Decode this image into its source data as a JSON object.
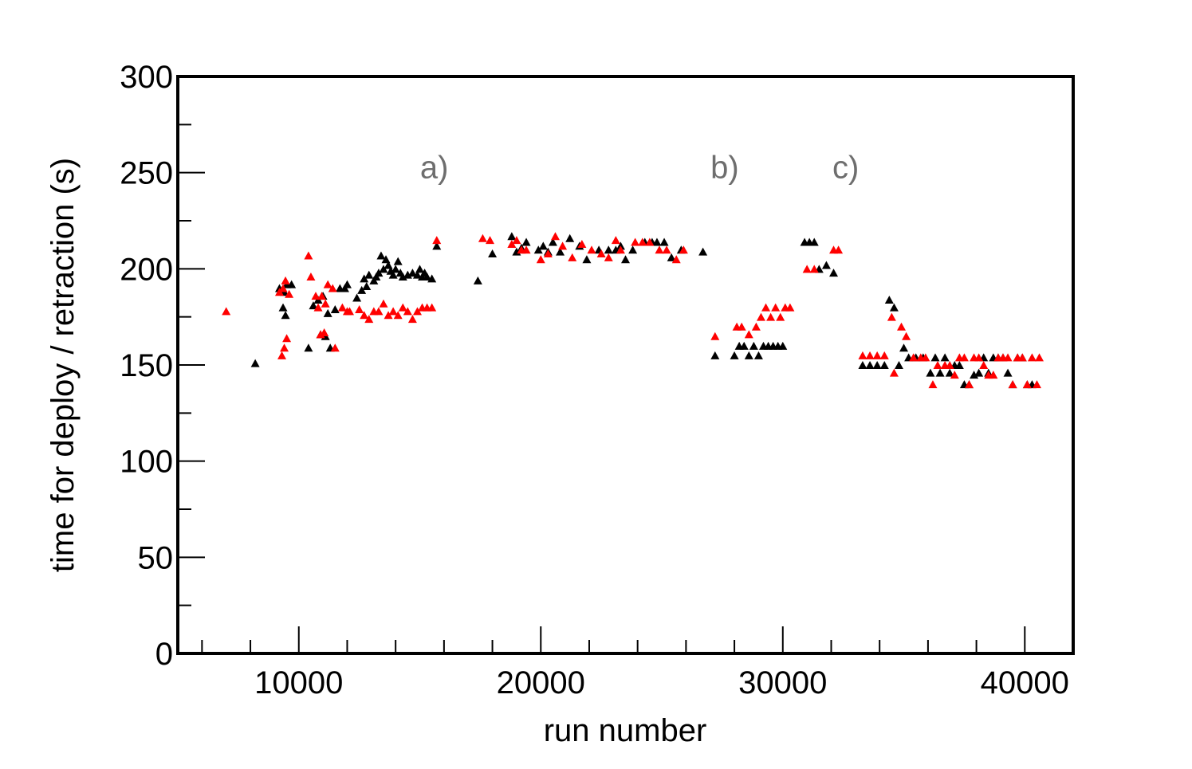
{
  "chart_data": {
    "type": "scatter",
    "title": "",
    "xlabel": "run number",
    "ylabel": "time for deploy / retraction (s)",
    "xlim": [
      5000,
      42000
    ],
    "ylim": [
      0,
      300
    ],
    "xticks": [
      10000,
      20000,
      30000,
      40000
    ],
    "xtick_labels": [
      "10000",
      "20000",
      "30000",
      "40000"
    ],
    "yticks": [
      0,
      50,
      100,
      150,
      200,
      250,
      300
    ],
    "ytick_labels": [
      "0",
      "50",
      "100",
      "150",
      "200",
      "250",
      "300"
    ],
    "grid": false,
    "marker": "triangle",
    "annotations": [
      {
        "text": "a)",
        "x": 15600,
        "y": 253
      },
      {
        "text": "b)",
        "x": 27600,
        "y": 253
      },
      {
        "text": "c)",
        "x": 32600,
        "y": 253
      }
    ],
    "series": [
      {
        "color": "#000000",
        "points": [
          [
            8200,
            151
          ],
          [
            9200,
            190
          ],
          [
            9400,
            188
          ],
          [
            9500,
            192
          ],
          [
            9700,
            192
          ],
          [
            9350,
            180
          ],
          [
            9450,
            176
          ],
          [
            10400,
            159
          ],
          [
            10600,
            181
          ],
          [
            10800,
            184
          ],
          [
            11000,
            186
          ],
          [
            10900,
            166
          ],
          [
            11100,
            165
          ],
          [
            11300,
            159
          ],
          [
            11200,
            177
          ],
          [
            11500,
            179
          ],
          [
            11700,
            190
          ],
          [
            11900,
            190
          ],
          [
            12000,
            192
          ],
          [
            12400,
            185
          ],
          [
            12600,
            189
          ],
          [
            12800,
            191
          ],
          [
            12700,
            195
          ],
          [
            12900,
            197
          ],
          [
            13100,
            194
          ],
          [
            13200,
            196
          ],
          [
            13300,
            198
          ],
          [
            13400,
            207
          ],
          [
            13500,
            200
          ],
          [
            13600,
            205
          ],
          [
            13700,
            202
          ],
          [
            13800,
            199
          ],
          [
            13900,
            197
          ],
          [
            14000,
            200
          ],
          [
            14100,
            204
          ],
          [
            14200,
            198
          ],
          [
            14300,
            196
          ],
          [
            14500,
            197
          ],
          [
            14700,
            198
          ],
          [
            14900,
            197
          ],
          [
            15000,
            200
          ],
          [
            15100,
            196
          ],
          [
            15200,
            198
          ],
          [
            15300,
            196
          ],
          [
            15500,
            195
          ],
          [
            15700,
            212
          ],
          [
            17400,
            194
          ],
          [
            18000,
            208
          ],
          [
            18800,
            217
          ],
          [
            19000,
            209
          ],
          [
            19200,
            211
          ],
          [
            19400,
            214
          ],
          [
            19900,
            210
          ],
          [
            20100,
            212
          ],
          [
            20300,
            209
          ],
          [
            20500,
            214
          ],
          [
            20800,
            209
          ],
          [
            21200,
            216
          ],
          [
            21600,
            212
          ],
          [
            21900,
            205
          ],
          [
            22400,
            210
          ],
          [
            22800,
            210
          ],
          [
            23100,
            210
          ],
          [
            23300,
            212
          ],
          [
            23500,
            205
          ],
          [
            23800,
            210
          ],
          [
            24300,
            214
          ],
          [
            24600,
            214
          ],
          [
            24800,
            214
          ],
          [
            25100,
            214
          ],
          [
            25400,
            206
          ],
          [
            25800,
            210
          ],
          [
            26700,
            209
          ],
          [
            27200,
            155
          ],
          [
            28000,
            155
          ],
          [
            28200,
            160
          ],
          [
            28400,
            160
          ],
          [
            28600,
            155
          ],
          [
            28800,
            160
          ],
          [
            29000,
            155
          ],
          [
            29200,
            160
          ],
          [
            29400,
            160
          ],
          [
            29600,
            160
          ],
          [
            29800,
            160
          ],
          [
            30000,
            160
          ],
          [
            30900,
            214
          ],
          [
            31100,
            214
          ],
          [
            31300,
            214
          ],
          [
            31500,
            200
          ],
          [
            31800,
            202
          ],
          [
            32100,
            198
          ],
          [
            33300,
            150
          ],
          [
            33600,
            150
          ],
          [
            33900,
            150
          ],
          [
            34200,
            150
          ],
          [
            34400,
            184
          ],
          [
            34600,
            180
          ],
          [
            34800,
            150
          ],
          [
            35000,
            159
          ],
          [
            35200,
            154
          ],
          [
            35500,
            154
          ],
          [
            35800,
            154
          ],
          [
            36100,
            146
          ],
          [
            36300,
            154
          ],
          [
            36500,
            146
          ],
          [
            36700,
            154
          ],
          [
            36900,
            146
          ],
          [
            37100,
            150
          ],
          [
            37300,
            150
          ],
          [
            37500,
            140
          ],
          [
            37700,
            140
          ],
          [
            37900,
            145
          ],
          [
            38100,
            146
          ],
          [
            38300,
            154
          ],
          [
            38500,
            146
          ],
          [
            38700,
            154
          ],
          [
            38900,
            154
          ],
          [
            39100,
            154
          ],
          [
            39300,
            146
          ],
          [
            39500,
            140
          ],
          [
            39700,
            154
          ],
          [
            39900,
            154
          ],
          [
            40100,
            140
          ],
          [
            40300,
            140
          ]
        ]
      },
      {
        "color": "#ff0000",
        "points": [
          [
            7000,
            178
          ],
          [
            9200,
            188
          ],
          [
            9350,
            190
          ],
          [
            9450,
            194
          ],
          [
            9600,
            187
          ],
          [
            9300,
            155
          ],
          [
            9500,
            164
          ],
          [
            9400,
            159
          ],
          [
            10400,
            207
          ],
          [
            10500,
            196
          ],
          [
            10700,
            186
          ],
          [
            10800,
            180
          ],
          [
            10950,
            186
          ],
          [
            11100,
            182
          ],
          [
            10900,
            166
          ],
          [
            11050,
            167
          ],
          [
            11200,
            192
          ],
          [
            11400,
            190
          ],
          [
            11500,
            159
          ],
          [
            11800,
            180
          ],
          [
            12000,
            178
          ],
          [
            12100,
            178
          ],
          [
            12500,
            179
          ],
          [
            12700,
            176
          ],
          [
            12900,
            174
          ],
          [
            13100,
            178
          ],
          [
            13300,
            178
          ],
          [
            13500,
            182
          ],
          [
            13700,
            176
          ],
          [
            13900,
            178
          ],
          [
            14100,
            176
          ],
          [
            14300,
            180
          ],
          [
            14500,
            178
          ],
          [
            14700,
            174
          ],
          [
            14900,
            178
          ],
          [
            15100,
            180
          ],
          [
            15300,
            180
          ],
          [
            15500,
            180
          ],
          [
            15700,
            215
          ],
          [
            17600,
            216
          ],
          [
            17900,
            215
          ],
          [
            18800,
            213
          ],
          [
            19000,
            215
          ],
          [
            19200,
            210
          ],
          [
            19400,
            210
          ],
          [
            20000,
            205
          ],
          [
            20300,
            208
          ],
          [
            20600,
            217
          ],
          [
            20900,
            212
          ],
          [
            21300,
            206
          ],
          [
            21700,
            213
          ],
          [
            22100,
            210
          ],
          [
            22500,
            208
          ],
          [
            22800,
            206
          ],
          [
            23100,
            215
          ],
          [
            23300,
            210
          ],
          [
            23900,
            214
          ],
          [
            24200,
            214
          ],
          [
            24500,
            214
          ],
          [
            24900,
            210
          ],
          [
            25200,
            210
          ],
          [
            25600,
            205
          ],
          [
            25900,
            210
          ],
          [
            27200,
            165
          ],
          [
            28100,
            170
          ],
          [
            28300,
            170
          ],
          [
            28600,
            166
          ],
          [
            28900,
            170
          ],
          [
            29100,
            175
          ],
          [
            29300,
            180
          ],
          [
            29500,
            175
          ],
          [
            29700,
            180
          ],
          [
            29900,
            175
          ],
          [
            30100,
            180
          ],
          [
            30300,
            180
          ],
          [
            31000,
            200
          ],
          [
            31300,
            200
          ],
          [
            32100,
            210
          ],
          [
            32300,
            210
          ],
          [
            33300,
            155
          ],
          [
            33600,
            155
          ],
          [
            33900,
            155
          ],
          [
            34200,
            155
          ],
          [
            34500,
            175
          ],
          [
            34600,
            146
          ],
          [
            34900,
            170
          ],
          [
            35100,
            165
          ],
          [
            35400,
            154
          ],
          [
            35700,
            154
          ],
          [
            35900,
            154
          ],
          [
            36200,
            140
          ],
          [
            36400,
            150
          ],
          [
            36700,
            150
          ],
          [
            36900,
            150
          ],
          [
            37100,
            145
          ],
          [
            37300,
            154
          ],
          [
            37500,
            154
          ],
          [
            37700,
            140
          ],
          [
            37900,
            154
          ],
          [
            38100,
            154
          ],
          [
            38300,
            150
          ],
          [
            38500,
            145
          ],
          [
            38700,
            145
          ],
          [
            38900,
            154
          ],
          [
            39100,
            154
          ],
          [
            39300,
            154
          ],
          [
            39500,
            140
          ],
          [
            39700,
            154
          ],
          [
            39900,
            154
          ],
          [
            40100,
            140
          ],
          [
            40300,
            154
          ],
          [
            40500,
            140
          ],
          [
            40600,
            154
          ]
        ]
      }
    ]
  }
}
